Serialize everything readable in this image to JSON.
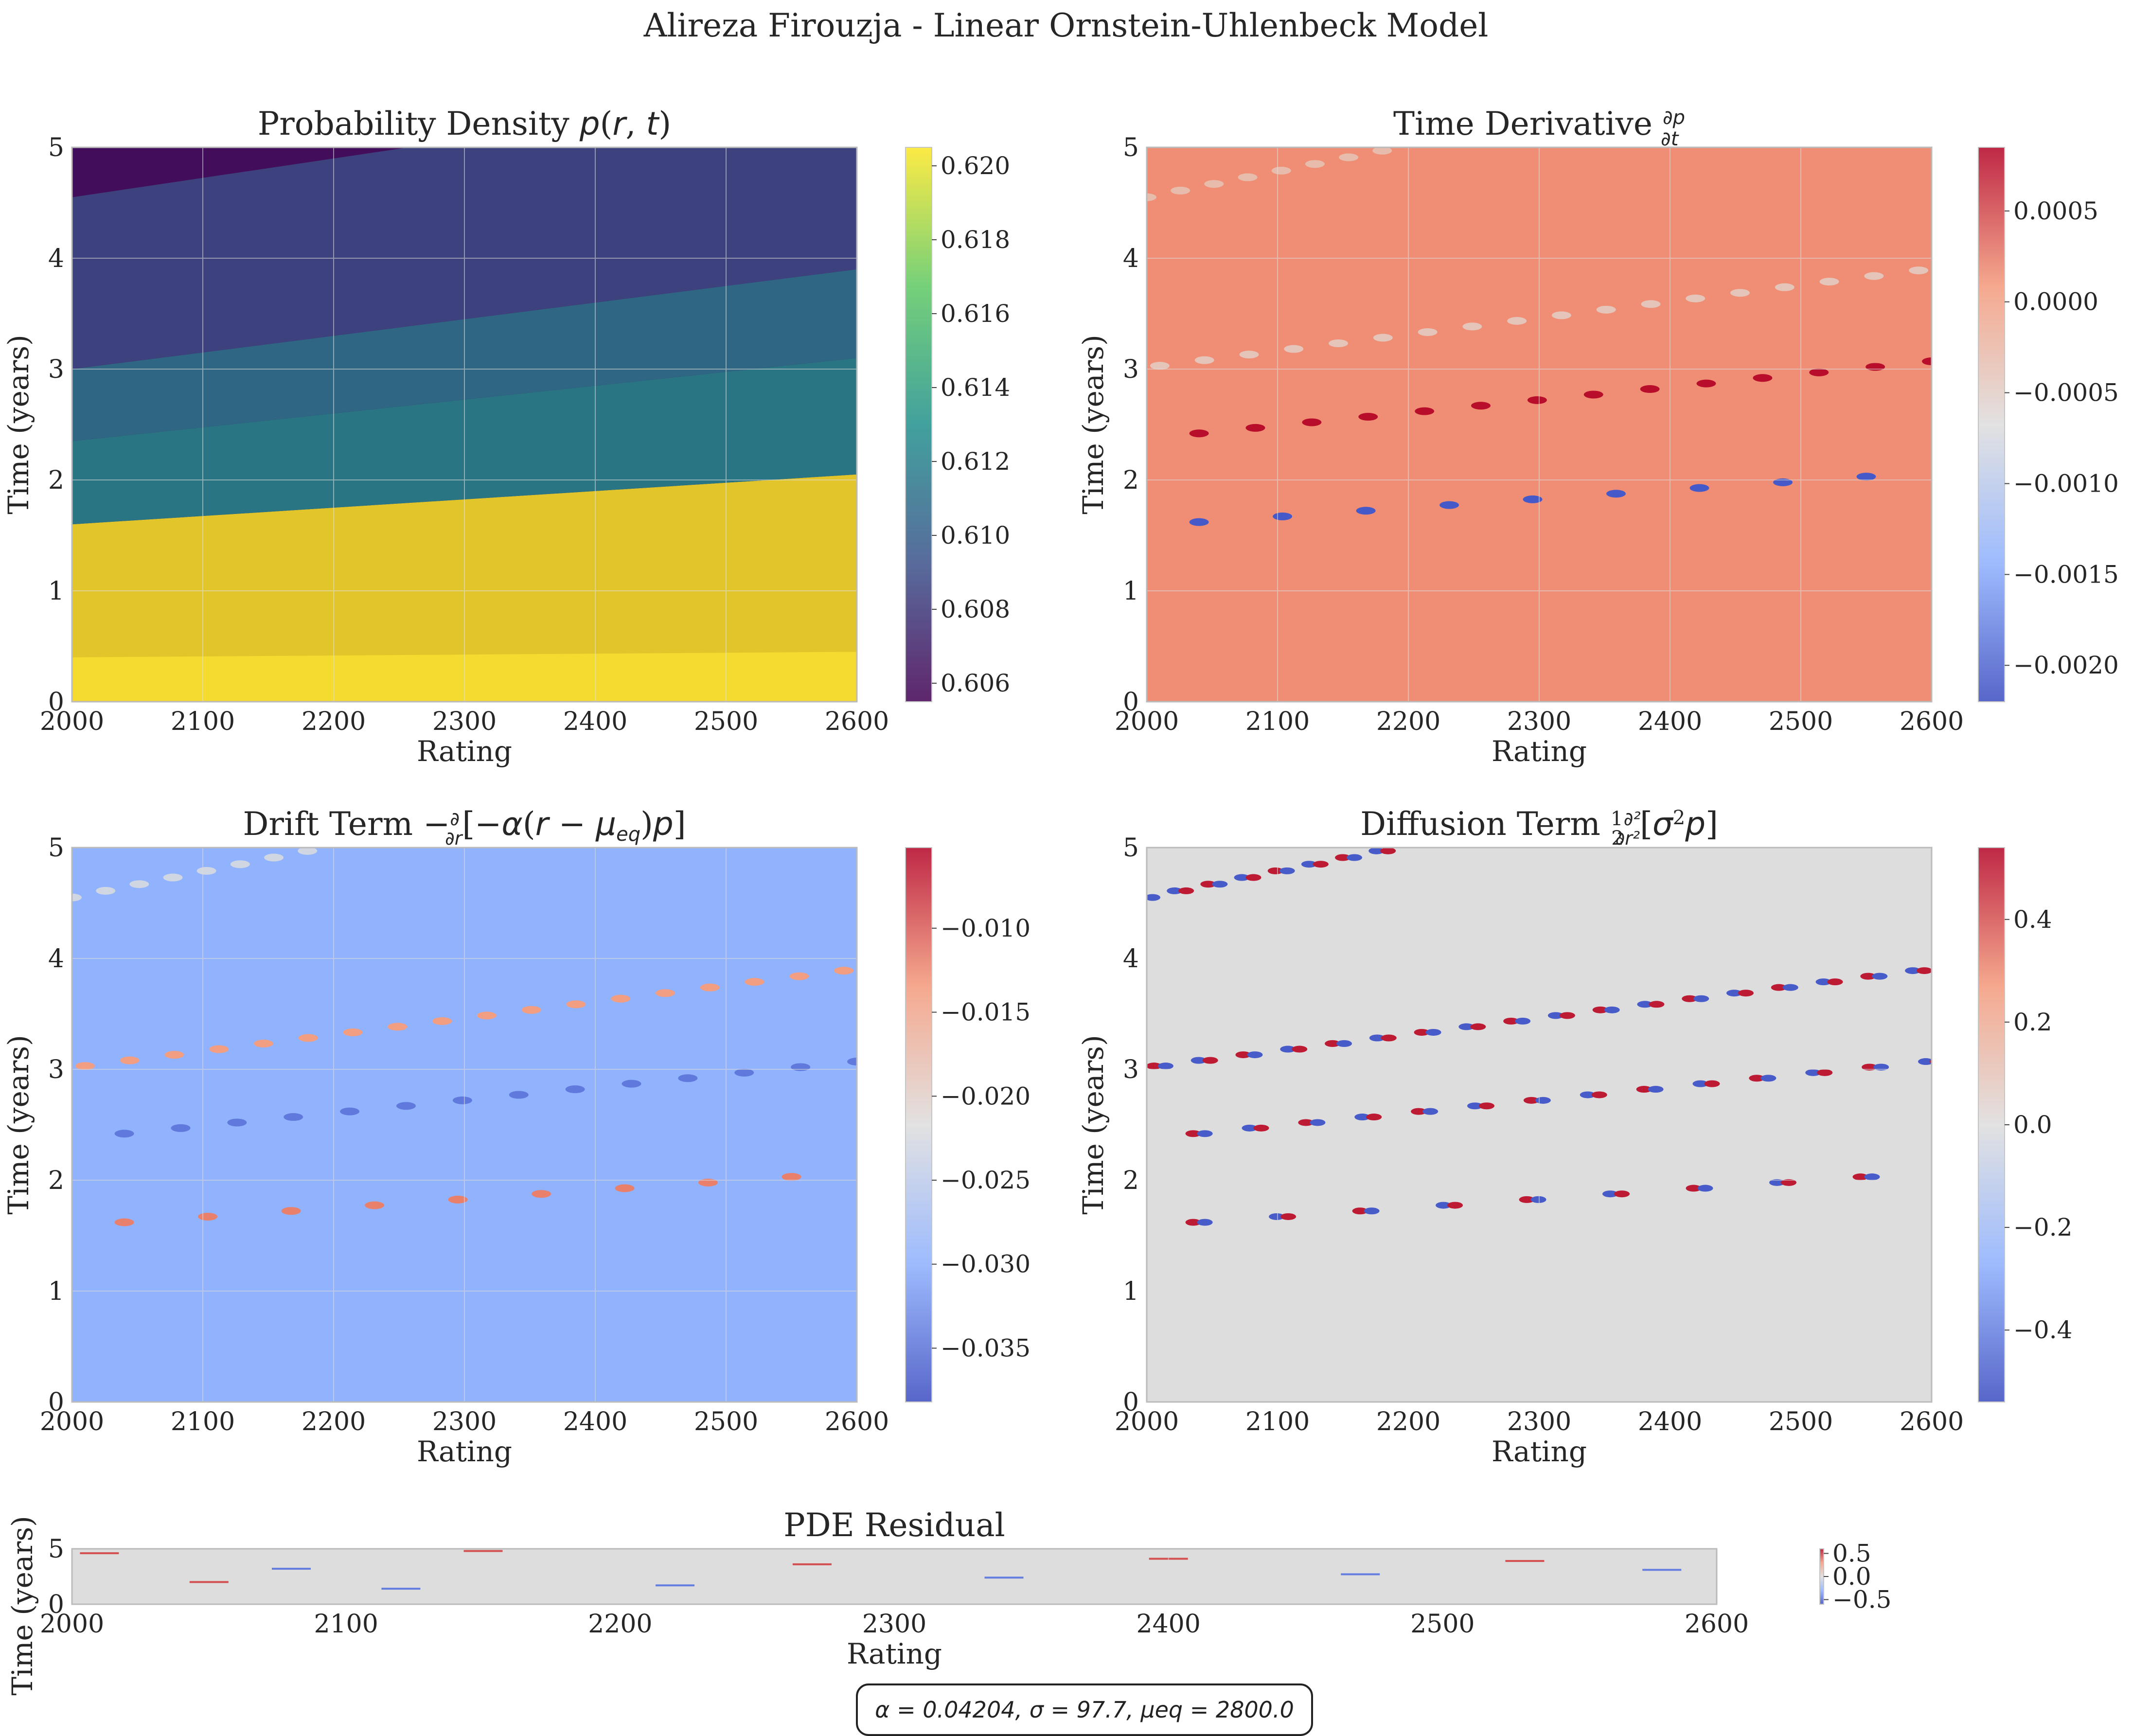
{
  "suptitle": "Alireza Firouzja - Linear Ornstein-Uhlenbeck Model",
  "params_box": "α = 0.04204, σ = 97.7, μeq = 2800.0",
  "colors": {
    "viridis": [
      "#440154",
      "#3b528b",
      "#21918c",
      "#5ec962",
      "#fde725"
    ],
    "coolwarm": [
      "#3b4cc0",
      "#8db0fe",
      "#dddddd",
      "#f49a7b",
      "#b40426"
    ],
    "grid": "#dddddd",
    "spine": "#bbbbbb"
  },
  "chart_data": [
    {
      "type": "heatmap",
      "id": "density",
      "title": "Probability Density p(r, t)",
      "xlabel": "Rating",
      "ylabel": "Time (years)",
      "xlim": [
        2000,
        2600
      ],
      "ylim": [
        0,
        5
      ],
      "xticks": [
        "2000",
        "2100",
        "2200",
        "2300",
        "2400",
        "2500",
        "2600"
      ],
      "yticks": [
        "0",
        "1",
        "2",
        "3",
        "4",
        "5"
      ],
      "colormap": "viridis",
      "colorbar": {
        "range": [
          0.6055,
          0.6205
        ],
        "ticks": [
          0.606,
          0.608,
          0.61,
          0.612,
          0.614,
          0.616,
          0.618,
          0.62
        ],
        "labels": [
          "0.606",
          "0.608",
          "0.610",
          "0.612",
          "0.614",
          "0.616",
          "0.618",
          "0.620"
        ]
      },
      "bands": [
        {
          "from": 0.0,
          "to": [
            1.6,
            2.05
          ],
          "value": 0.6205
        },
        {
          "from": [
            1.6,
            2.05
          ],
          "to": [
            2.35,
            3.1
          ],
          "value": 0.6125
        },
        {
          "from": [
            2.35,
            3.1
          ],
          "to": [
            3.0,
            3.9
          ],
          "value": 0.6115
        },
        {
          "from": [
            3.0,
            3.9
          ],
          "to": [
            4.55,
            5.6
          ],
          "value": 0.609
        },
        {
          "from": [
            4.55,
            5.6
          ],
          "to": 5.0,
          "value": 0.6062
        }
      ],
      "grid": true
    },
    {
      "type": "heatmap",
      "id": "time-derivative",
      "title": "Time Derivative ∂p/∂t",
      "xlabel": "Rating",
      "ylabel": "Time (years)",
      "xlim": [
        2000,
        2600
      ],
      "ylim": [
        0,
        5
      ],
      "xticks": [
        "2000",
        "2100",
        "2200",
        "2300",
        "2400",
        "2500",
        "2600"
      ],
      "yticks": [
        "0",
        "1",
        "2",
        "3",
        "4",
        "5"
      ],
      "colormap": "coolwarm",
      "colorbar": {
        "range": [
          -0.0022,
          0.00085
        ],
        "ticks": [
          -0.002,
          -0.0015,
          -0.001,
          -0.0005,
          0.0,
          0.0005
        ],
        "labels": [
          "−0.0020",
          "−0.0015",
          "−0.0010",
          "−0.0005",
          "0.0000",
          "0.0005"
        ]
      },
      "background": 0.00015,
      "tracks": [
        {
          "r0": 2040,
          "t0": 2.42,
          "r1": 2600,
          "t1": 3.07,
          "n": 14,
          "value": 0.0008
        },
        {
          "r0": 2040,
          "t0": 1.62,
          "r1": 2550,
          "t1": 2.03,
          "n": 9,
          "value": -0.0021
        },
        {
          "r0": 2010,
          "t0": 3.03,
          "r1": 2590,
          "t1": 3.89,
          "n": 18,
          "value": -0.0004
        },
        {
          "r0": 2000,
          "t0": 4.55,
          "r1": 2180,
          "t1": 4.97,
          "n": 8,
          "value": -0.0003
        }
      ],
      "grid": true
    },
    {
      "type": "heatmap",
      "id": "drift-term",
      "title": "Drift Term −∂/∂r[−α(r − μeq)p]",
      "xlabel": "Rating",
      "ylabel": "Time (years)",
      "xlim": [
        2000,
        2600
      ],
      "ylim": [
        0,
        5
      ],
      "xticks": [
        "2000",
        "2100",
        "2200",
        "2300",
        "2400",
        "2500",
        "2600"
      ],
      "yticks": [
        "0",
        "1",
        "2",
        "3",
        "4",
        "5"
      ],
      "colormap": "coolwarm",
      "colorbar": {
        "range": [
          -0.0382,
          -0.0052
        ],
        "ticks": [
          -0.035,
          -0.03,
          -0.025,
          -0.02,
          -0.015,
          -0.01
        ],
        "labels": [
          "−0.035",
          "−0.030",
          "−0.025",
          "−0.020",
          "−0.015",
          "−0.010"
        ]
      },
      "background": -0.0295,
      "tracks": [
        {
          "r0": 2040,
          "t0": 1.62,
          "r1": 2550,
          "t1": 2.03,
          "n": 9,
          "value": -0.012
        },
        {
          "r0": 2040,
          "t0": 2.42,
          "r1": 2600,
          "t1": 3.07,
          "n": 14,
          "value": -0.0345
        },
        {
          "r0": 2010,
          "t0": 3.03,
          "r1": 2590,
          "t1": 3.89,
          "n": 18,
          "value": -0.014
        },
        {
          "r0": 2000,
          "t0": 4.55,
          "r1": 2180,
          "t1": 4.97,
          "n": 8,
          "value": -0.023
        }
      ],
      "grid": true
    },
    {
      "type": "heatmap",
      "id": "diffusion-term",
      "title": "Diffusion Term ½ ∂²/∂r²[σ²p]",
      "xlabel": "Rating",
      "ylabel": "Time (years)",
      "xlim": [
        2000,
        2600
      ],
      "ylim": [
        0,
        5
      ],
      "xticks": [
        "2000",
        "2100",
        "2200",
        "2300",
        "2400",
        "2500",
        "2600"
      ],
      "yticks": [
        "0",
        "1",
        "2",
        "3",
        "4",
        "5"
      ],
      "colormap": "coolwarm",
      "colorbar": {
        "range": [
          -0.54,
          0.54
        ],
        "ticks": [
          -0.4,
          -0.2,
          0.0,
          0.2,
          0.4
        ],
        "labels": [
          "−0.4",
          "−0.2",
          "0.0",
          "0.2",
          "0.4"
        ]
      },
      "background": 0.0,
      "tracks": [
        {
          "r0": 2040,
          "t0": 1.62,
          "r1": 2550,
          "t1": 2.03,
          "n": 9,
          "value": 0.5,
          "dipole": true
        },
        {
          "r0": 2040,
          "t0": 2.42,
          "r1": 2600,
          "t1": 3.07,
          "n": 14,
          "value": 0.5,
          "dipole": true
        },
        {
          "r0": 2010,
          "t0": 3.03,
          "r1": 2590,
          "t1": 3.89,
          "n": 18,
          "value": 0.5,
          "dipole": true
        },
        {
          "r0": 2000,
          "t0": 4.55,
          "r1": 2180,
          "t1": 4.97,
          "n": 8,
          "value": 0.5,
          "dipole": true
        }
      ],
      "grid": true
    },
    {
      "type": "heatmap",
      "id": "pde-residual",
      "title": "PDE Residual",
      "xlabel": "Rating",
      "ylabel": "Time (years)",
      "xlim": [
        2000,
        2600
      ],
      "ylim": [
        0,
        5
      ],
      "xticks": [
        "2000",
        "2100",
        "2200",
        "2300",
        "2400",
        "2500",
        "2600"
      ],
      "yticks": [
        "0",
        "5"
      ],
      "colormap": "coolwarm",
      "colorbar": {
        "range": [
          -0.6,
          0.6
        ],
        "ticks": [
          -0.5,
          0.0,
          0.5
        ],
        "labels": [
          "−0.5",
          "0.0",
          "0.5"
        ]
      },
      "background": 0.0,
      "grid": true
    }
  ]
}
